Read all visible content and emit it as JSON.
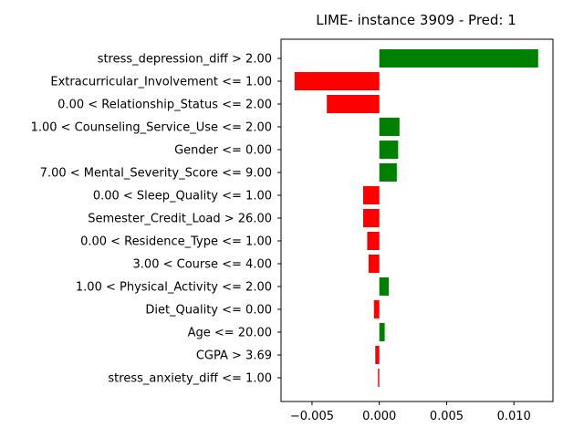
{
  "chart_data": {
    "type": "bar",
    "orientation": "horizontal",
    "title": "LIME- instance 3909 - Pred: 1",
    "xlabel": "",
    "ylabel": "",
    "xlim": [
      -0.0073,
      0.0129
    ],
    "xticks": [
      -0.005,
      0.0,
      0.005,
      0.01
    ],
    "xtick_labels": [
      "−0.005",
      "0.000",
      "0.005",
      "0.010"
    ],
    "grid": false,
    "colors": {
      "positive": "#008000",
      "negative": "#ff0000"
    },
    "categories": [
      "stress_depression_diff > 2.00",
      "Extracurricular_Involvement <= 1.00",
      "0.00 < Relationship_Status <= 2.00",
      "1.00 < Counseling_Service_Use <= 2.00",
      "Gender <= 0.00",
      "7.00 < Mental_Severity_Score <= 9.00",
      "0.00 < Sleep_Quality <= 1.00",
      "Semester_Credit_Load > 26.00",
      "0.00 < Residence_Type <= 1.00",
      "3.00 < Course <= 4.00",
      "1.00 < Physical_Activity <= 2.00",
      "Diet_Quality <= 0.00",
      "Age <= 20.00",
      "CGPA > 3.69",
      "stress_anxiety_diff <= 1.00"
    ],
    "values": [
      0.0118,
      -0.0063,
      -0.0039,
      0.0015,
      0.0014,
      0.0013,
      -0.0012,
      -0.0012,
      -0.0009,
      -0.0008,
      0.0007,
      -0.0004,
      0.0004,
      -0.0003,
      -0.0001
    ]
  }
}
